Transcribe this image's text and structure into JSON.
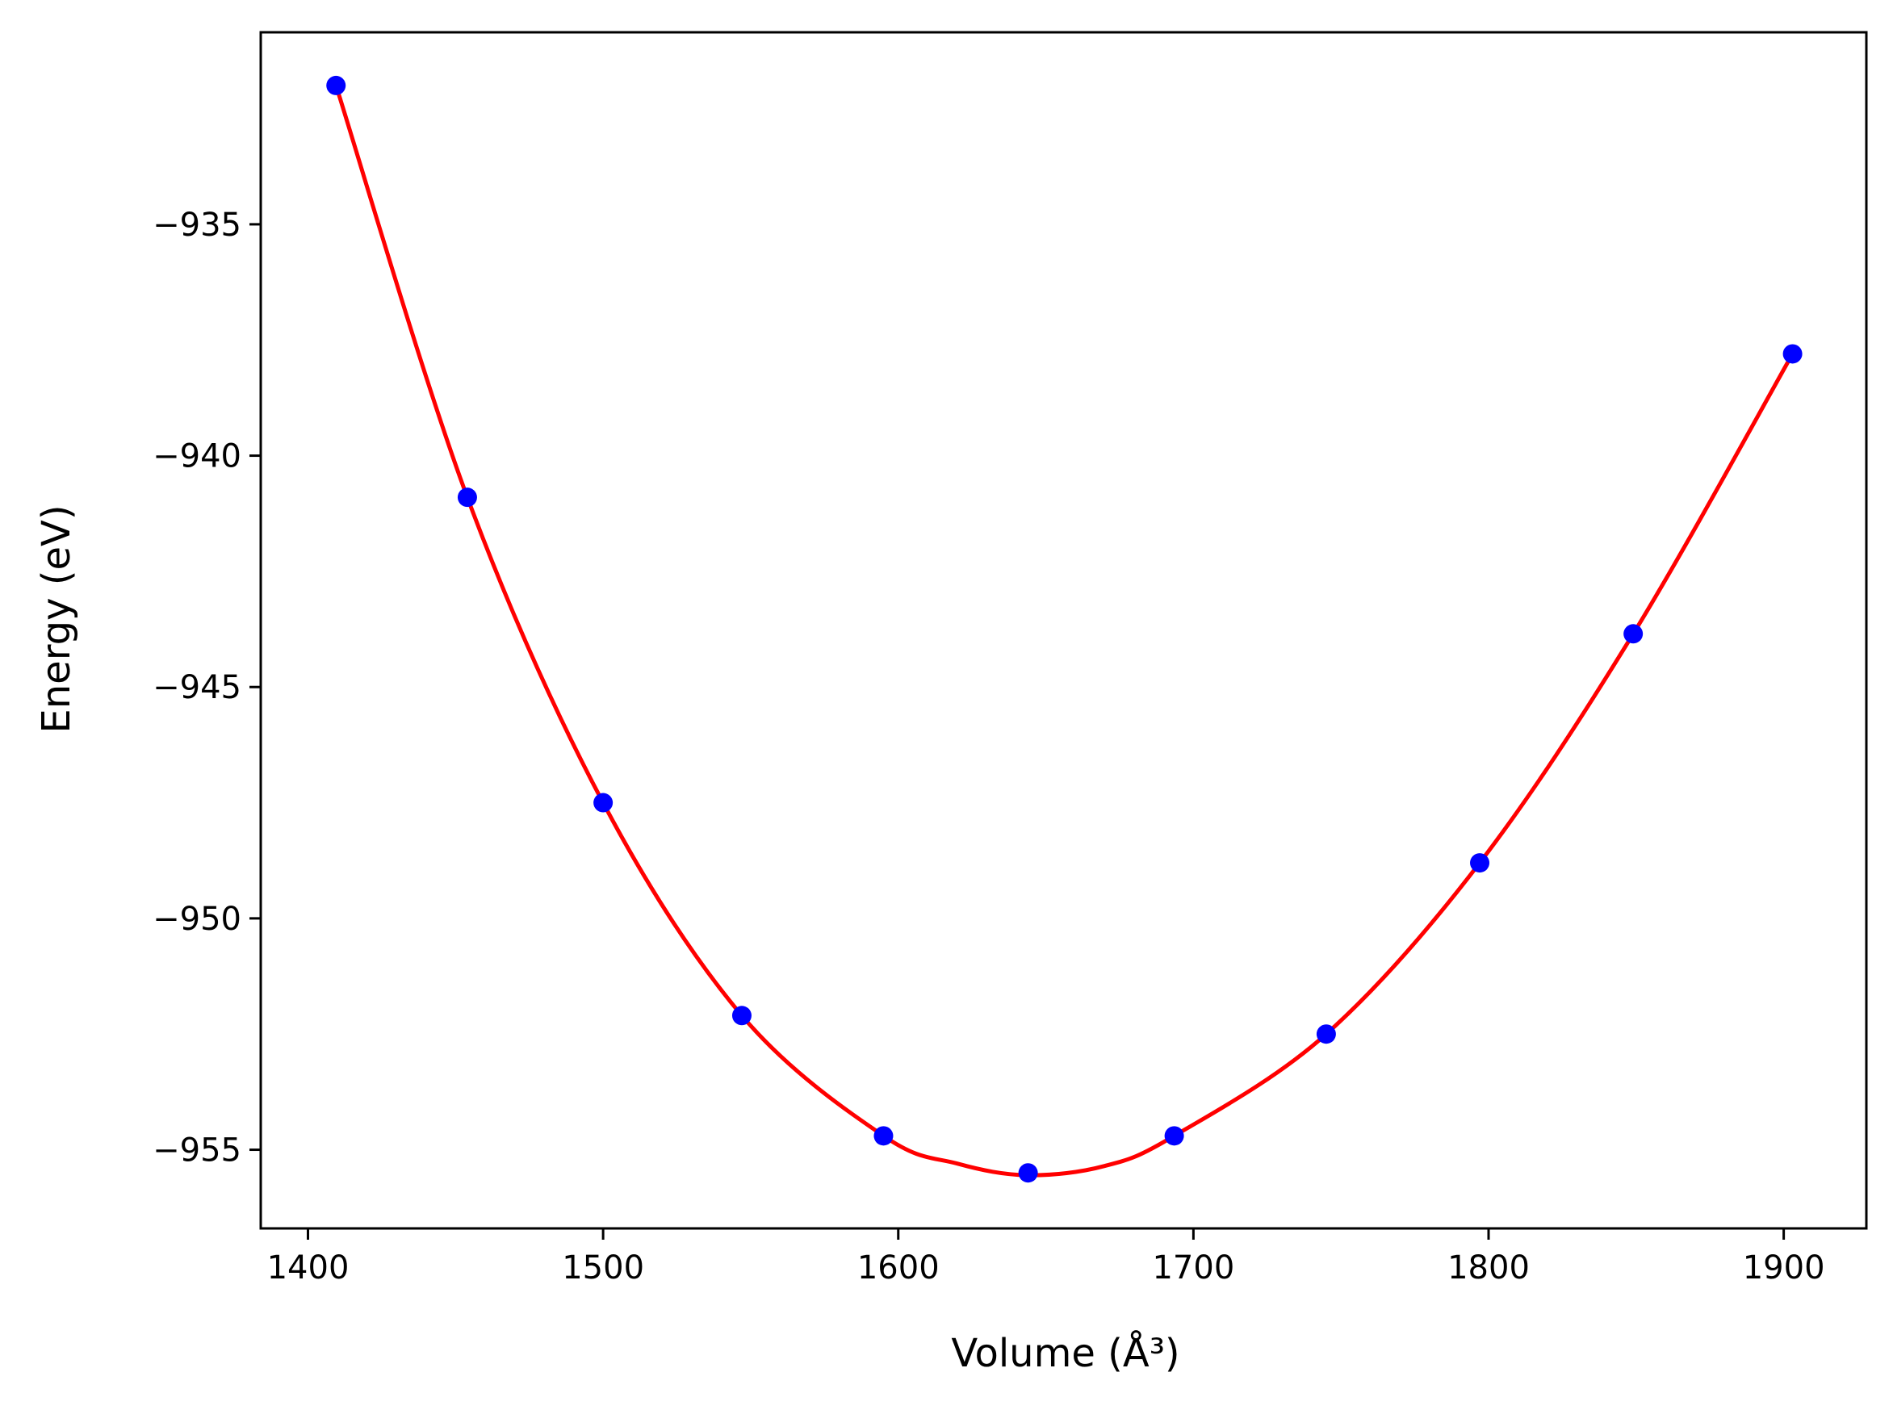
{
  "chart_data": {
    "type": "scatter",
    "xlabel": "Volume (Å³)",
    "ylabel": "Energy (eV)",
    "xlim": [
      1384,
      1928
    ],
    "ylim": [
      -956.7,
      -930.85
    ],
    "grid": false,
    "x_ticks": [
      1400,
      1500,
      1600,
      1700,
      1800,
      1900
    ],
    "y_ticks": [
      -935,
      -940,
      -945,
      -950,
      -955
    ],
    "x_tick_labels": [
      "1400",
      "1500",
      "1600",
      "1700",
      "1800",
      "1900"
    ],
    "y_tick_labels": [
      "−935",
      "−940",
      "−945",
      "−950",
      "−955"
    ],
    "series": [
      {
        "kind": "points",
        "color": "#0000ff",
        "x": [
          1409.5,
          1454,
          1500,
          1547,
          1595,
          1644,
          1693.5,
          1745,
          1797,
          1849,
          1903
        ],
        "y": [
          -932.0,
          -940.9,
          -947.5,
          -952.1,
          -954.7,
          -955.5,
          -954.7,
          -952.5,
          -948.8,
          -943.85,
          -937.8
        ]
      },
      {
        "kind": "fit-curve",
        "color": "#ff0000",
        "x": [
          1409.5,
          1454,
          1500,
          1547,
          1595,
          1620,
          1644,
          1670,
          1693.5,
          1745,
          1797,
          1849,
          1903
        ],
        "y": [
          -932.0,
          -940.9,
          -947.5,
          -952.1,
          -954.7,
          -955.3,
          -955.55,
          -955.35,
          -954.7,
          -952.5,
          -948.8,
          -943.85,
          -937.8
        ]
      }
    ]
  }
}
